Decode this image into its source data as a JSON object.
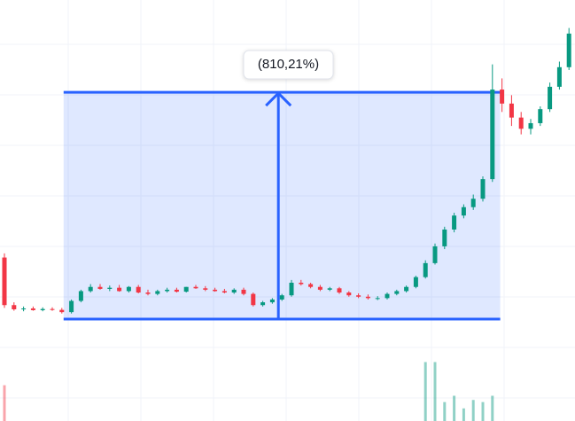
{
  "chart_data": {
    "type": "candlestick",
    "categories": [
      null,
      null,
      null,
      null,
      null,
      null,
      null,
      null,
      null,
      null,
      null,
      null,
      null,
      null,
      null,
      null,
      null,
      null,
      null,
      null,
      null,
      null,
      null,
      null,
      null,
      null,
      null,
      null,
      null,
      null,
      null,
      null,
      null,
      null,
      null,
      null,
      null,
      null,
      null,
      null,
      null,
      null,
      null,
      null,
      null,
      null,
      null,
      null,
      null,
      null,
      null,
      null,
      null,
      null,
      null,
      null,
      null,
      null,
      null,
      null
    ],
    "open": [
      320,
      150,
      135,
      138,
      132,
      136,
      133,
      125,
      165,
      200,
      215,
      208,
      212,
      200,
      215,
      195,
      190,
      200,
      205,
      198,
      215,
      210,
      205,
      200,
      195,
      205,
      190,
      150,
      160,
      170,
      185,
      230,
      225,
      215,
      205,
      210,
      195,
      185,
      180,
      175,
      175,
      190,
      200,
      215,
      250,
      300,
      360,
      420,
      470,
      500,
      530,
      600,
      920,
      870,
      820,
      780,
      800,
      850,
      930,
      1000
    ],
    "high": [
      335,
      160,
      145,
      145,
      142,
      142,
      140,
      170,
      205,
      225,
      225,
      220,
      222,
      218,
      222,
      205,
      205,
      212,
      212,
      215,
      222,
      218,
      212,
      208,
      210,
      212,
      195,
      165,
      175,
      190,
      240,
      240,
      230,
      222,
      215,
      215,
      200,
      192,
      188,
      182,
      195,
      205,
      220,
      255,
      310,
      370,
      430,
      480,
      510,
      545,
      610,
      1010,
      960,
      900,
      840,
      815,
      860,
      945,
      1020,
      1140
    ],
    "low": [
      140,
      130,
      128,
      130,
      128,
      130,
      120,
      120,
      160,
      195,
      205,
      200,
      198,
      195,
      192,
      185,
      185,
      195,
      195,
      195,
      208,
      200,
      198,
      192,
      190,
      185,
      145,
      145,
      155,
      165,
      180,
      220,
      210,
      200,
      200,
      190,
      180,
      175,
      170,
      168,
      170,
      185,
      195,
      210,
      245,
      295,
      350,
      410,
      460,
      490,
      520,
      590,
      840,
      790,
      760,
      760,
      790,
      840,
      920,
      990
    ],
    "close": [
      150,
      135,
      138,
      132,
      136,
      133,
      125,
      165,
      200,
      215,
      208,
      212,
      200,
      215,
      195,
      190,
      200,
      205,
      198,
      215,
      210,
      205,
      200,
      195,
      205,
      190,
      150,
      160,
      170,
      185,
      230,
      225,
      215,
      205,
      210,
      195,
      185,
      180,
      175,
      175,
      190,
      200,
      215,
      250,
      300,
      360,
      420,
      470,
      500,
      530,
      600,
      920,
      870,
      820,
      780,
      800,
      850,
      930,
      1000,
      1120
    ],
    "up_color": "#089981",
    "down_color": "#f23645",
    "ylim": [
      -264,
      1240
    ],
    "volume": [
      85,
      0,
      0,
      0,
      0,
      0,
      0,
      0,
      0,
      0,
      0,
      0,
      0,
      0,
      0,
      0,
      0,
      0,
      0,
      0,
      0,
      0,
      0,
      0,
      0,
      0,
      0,
      0,
      0,
      0,
      0,
      0,
      0,
      0,
      0,
      0,
      0,
      0,
      0,
      0,
      0,
      0,
      0,
      0,
      140,
      140,
      45,
      60,
      30,
      50,
      45,
      60,
      0,
      0,
      0,
      0,
      0,
      0,
      0,
      0
    ],
    "y2lim": [
      0,
      1000
    ],
    "measure": {
      "start": 6,
      "end": 52,
      "from": 100,
      "to": 910.21,
      "label": "(810,21%)",
      "color": "#2962ff"
    }
  }
}
